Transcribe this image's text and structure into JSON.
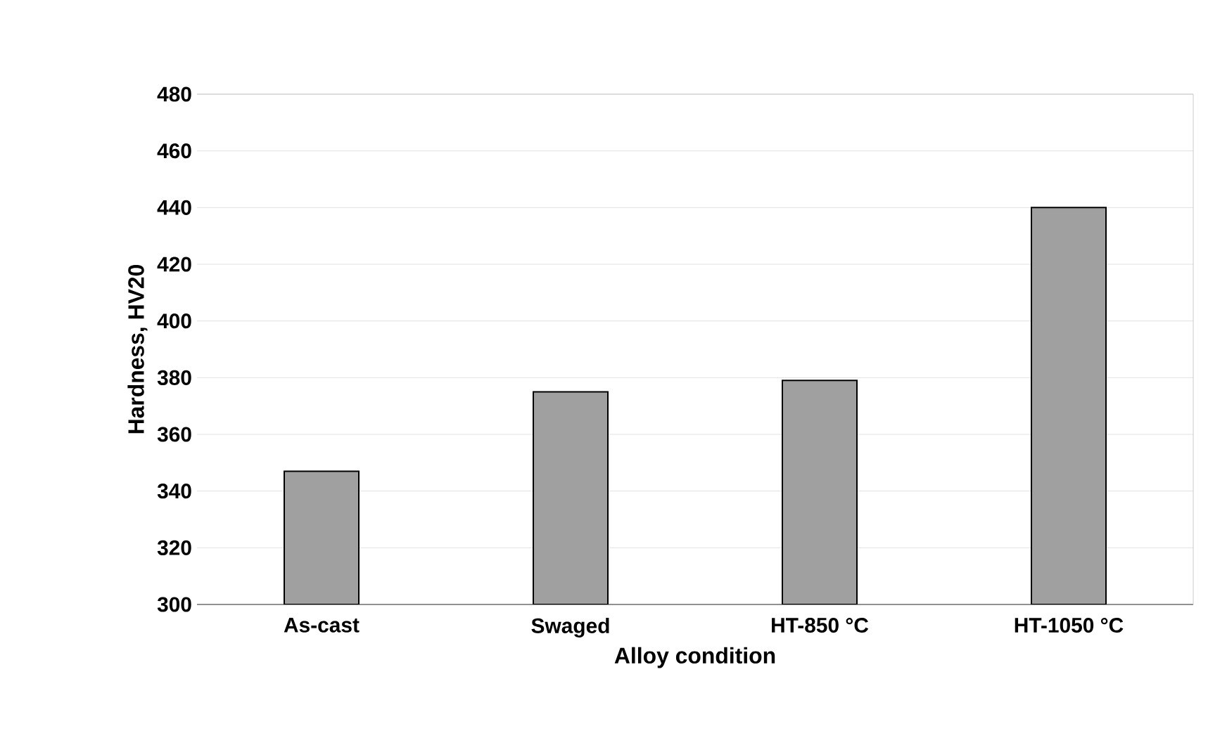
{
  "chart_data": {
    "type": "bar",
    "xlabel": "Alloy condition",
    "ylabel": "Hardness, HV20",
    "categories": [
      "As-cast",
      "Swaged",
      "HT-850 °C",
      "HT-1050 °C"
    ],
    "values": [
      347,
      375,
      379,
      440
    ],
    "color": "#a0a0a0",
    "ylim": [
      300,
      480
    ],
    "yticks": [
      300,
      320,
      340,
      360,
      380,
      400,
      420,
      440,
      460,
      480
    ],
    "grid": "y"
  }
}
